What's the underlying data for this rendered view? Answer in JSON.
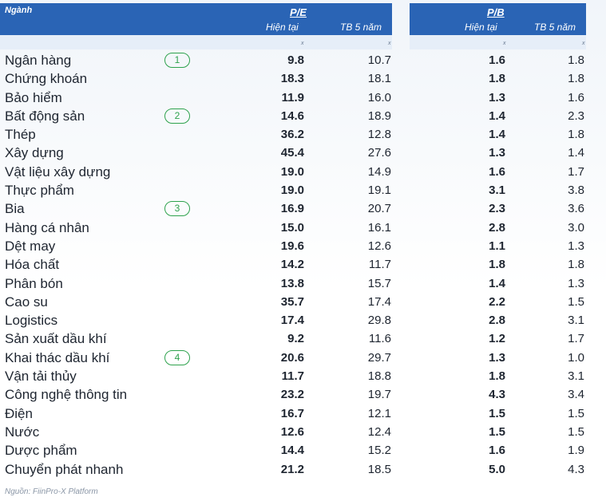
{
  "header": {
    "sector_label": "Ngành",
    "group1_label": "P/E",
    "group1_current": "Hiện tại",
    "group1_avg": "TB 5 năm",
    "group2_label": "P/B",
    "group2_current": "Hiện tại",
    "group2_avg": "TB 5 năm",
    "unit": "x",
    "colors": {
      "header_bg": "#2a64b5",
      "subheader_bg": "#e6eef8",
      "marker": "#2ea24d"
    }
  },
  "rows": [
    {
      "name": "Ngân hàng",
      "marker": "1",
      "pe_now": "9.8",
      "pe_avg": "10.7",
      "pb_now": "1.6",
      "pb_avg": "1.8"
    },
    {
      "name": "Chứng khoán",
      "marker": "",
      "pe_now": "18.3",
      "pe_avg": "18.1",
      "pb_now": "1.8",
      "pb_avg": "1.8"
    },
    {
      "name": "Bảo hiểm",
      "marker": "",
      "pe_now": "11.9",
      "pe_avg": "16.0",
      "pb_now": "1.3",
      "pb_avg": "1.6"
    },
    {
      "name": "Bất động sản",
      "marker": "2",
      "pe_now": "14.6",
      "pe_avg": "18.9",
      "pb_now": "1.4",
      "pb_avg": "2.3"
    },
    {
      "name": "Thép",
      "marker": "",
      "pe_now": "36.2",
      "pe_avg": "12.8",
      "pb_now": "1.4",
      "pb_avg": "1.8"
    },
    {
      "name": "Xây dựng",
      "marker": "",
      "pe_now": "45.4",
      "pe_avg": "27.6",
      "pb_now": "1.3",
      "pb_avg": "1.4"
    },
    {
      "name": "Vật liệu xây dựng",
      "marker": "",
      "pe_now": "19.0",
      "pe_avg": "14.9",
      "pb_now": "1.6",
      "pb_avg": "1.7"
    },
    {
      "name": "Thực phẩm",
      "marker": "",
      "pe_now": "19.0",
      "pe_avg": "19.1",
      "pb_now": "3.1",
      "pb_avg": "3.8"
    },
    {
      "name": "Bia",
      "marker": "3",
      "pe_now": "16.9",
      "pe_avg": "20.7",
      "pb_now": "2.3",
      "pb_avg": "3.6"
    },
    {
      "name": "Hàng cá nhân",
      "marker": "",
      "pe_now": "15.0",
      "pe_avg": "16.1",
      "pb_now": "2.8",
      "pb_avg": "3.0"
    },
    {
      "name": "Dệt may",
      "marker": "",
      "pe_now": "19.6",
      "pe_avg": "12.6",
      "pb_now": "1.1",
      "pb_avg": "1.3"
    },
    {
      "name": "Hóa chất",
      "marker": "",
      "pe_now": "14.2",
      "pe_avg": "11.7",
      "pb_now": "1.8",
      "pb_avg": "1.8"
    },
    {
      "name": "Phân bón",
      "marker": "",
      "pe_now": "13.8",
      "pe_avg": "15.7",
      "pb_now": "1.4",
      "pb_avg": "1.3"
    },
    {
      "name": "Cao su",
      "marker": "",
      "pe_now": "35.7",
      "pe_avg": "17.4",
      "pb_now": "2.2",
      "pb_avg": "1.5"
    },
    {
      "name": "Logistics",
      "marker": "",
      "pe_now": "17.4",
      "pe_avg": "29.8",
      "pb_now": "2.8",
      "pb_avg": "3.1"
    },
    {
      "name": "Sản xuất dầu khí",
      "marker": "",
      "pe_now": "9.2",
      "pe_avg": "11.6",
      "pb_now": "1.2",
      "pb_avg": "1.7"
    },
    {
      "name": "Khai thác dầu khí",
      "marker": "4",
      "pe_now": "20.6",
      "pe_avg": "29.7",
      "pb_now": "1.3",
      "pb_avg": "1.0"
    },
    {
      "name": "Vận tải thủy",
      "marker": "",
      "pe_now": "11.7",
      "pe_avg": "18.8",
      "pb_now": "1.8",
      "pb_avg": "3.1"
    },
    {
      "name": "Công nghệ thông tin",
      "marker": "",
      "pe_now": "23.2",
      "pe_avg": "19.7",
      "pb_now": "4.3",
      "pb_avg": "3.4"
    },
    {
      "name": "Điện",
      "marker": "",
      "pe_now": "16.7",
      "pe_avg": "12.1",
      "pb_now": "1.5",
      "pb_avg": "1.5"
    },
    {
      "name": "Nước",
      "marker": "",
      "pe_now": "12.6",
      "pe_avg": "12.4",
      "pb_now": "1.5",
      "pb_avg": "1.5"
    },
    {
      "name": "Dược phẩm",
      "marker": "",
      "pe_now": "14.4",
      "pe_avg": "15.2",
      "pb_now": "1.6",
      "pb_avg": "1.9"
    },
    {
      "name": "Chuyển phát nhanh",
      "marker": "",
      "pe_now": "21.2",
      "pe_avg": "18.5",
      "pb_now": "5.0",
      "pb_avg": "4.3"
    }
  ],
  "source": "Nguồn: FiinPro-X Platform"
}
